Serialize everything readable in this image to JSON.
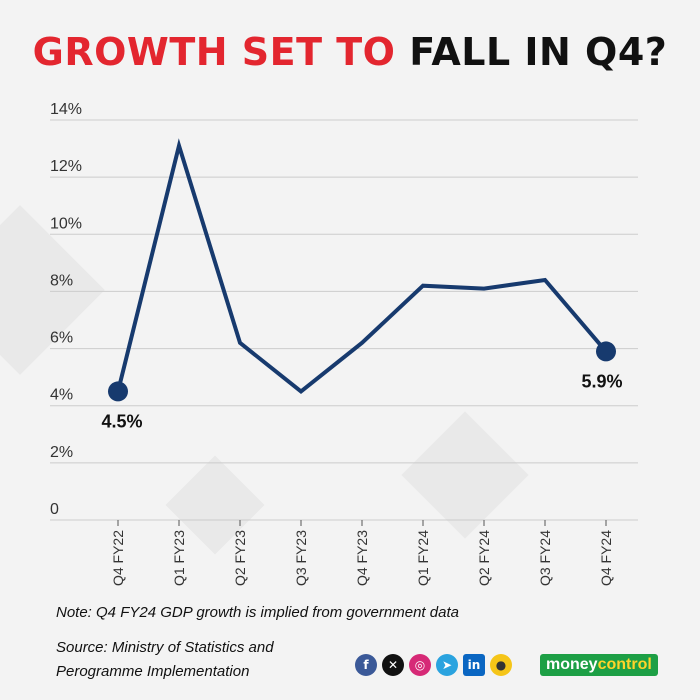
{
  "title": {
    "part1": "GROWTH SET TO",
    "part2": "FALL IN Q4?"
  },
  "colors": {
    "title_accent": "#e3262f",
    "line": "#173a6e",
    "grid": "#cccccc"
  },
  "chart_data": {
    "type": "line",
    "categories": [
      "Q4 FY22",
      "Q1 FY23",
      "Q2 FY23",
      "Q3 FY23",
      "Q4 FY23",
      "Q1 FY24",
      "Q2 FY24",
      "Q3 FY24",
      "Q4 FY24"
    ],
    "series": [
      {
        "values": [
          4.5,
          13.1,
          6.2,
          4.5,
          6.2,
          8.2,
          8.1,
          8.4,
          5.9
        ]
      }
    ],
    "yticks": [
      "0",
      "2%",
      "4%",
      "6%",
      "8%",
      "10%",
      "12%",
      "14%"
    ],
    "ylim": [
      0,
      14
    ],
    "grid": true,
    "annotations": [
      {
        "index": 0,
        "label": "4.5%"
      },
      {
        "index": 8,
        "label": "5.9%"
      }
    ]
  },
  "note": "Note: Q4 FY24 GDP growth is implied from government data",
  "source": {
    "line1": "Source: Ministry of Statistics and",
    "line2": "Perogramme Implementation"
  },
  "social_icons": [
    "facebook-icon",
    "x-icon",
    "instagram-icon",
    "telegram-icon",
    "linkedin-icon",
    "koo-icon"
  ],
  "brand": {
    "part1": "money",
    "part2": "control"
  }
}
